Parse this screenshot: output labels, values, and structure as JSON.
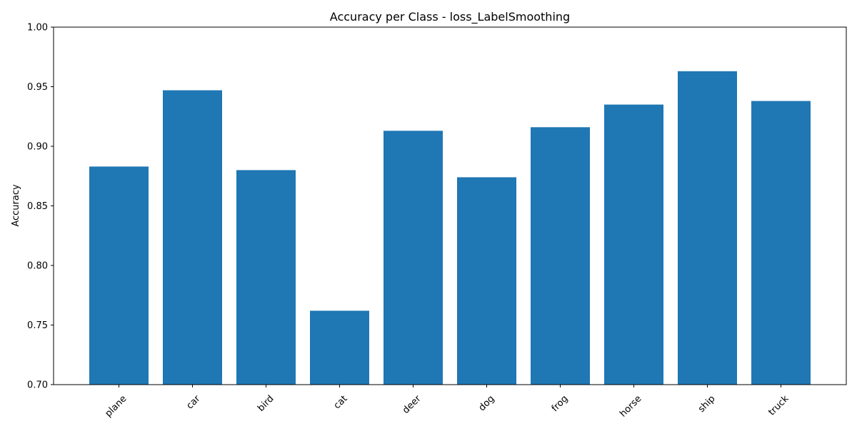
{
  "chart_data": {
    "type": "bar",
    "title": "Accuracy per Class - loss_LabelSmoothing",
    "xlabel": "",
    "ylabel": "Accuracy",
    "categories": [
      "plane",
      "car",
      "bird",
      "cat",
      "deer",
      "dog",
      "frog",
      "horse",
      "ship",
      "truck"
    ],
    "values": [
      0.883,
      0.947,
      0.88,
      0.762,
      0.913,
      0.874,
      0.916,
      0.935,
      0.963,
      0.938
    ],
    "ylim": [
      0.7,
      1.0
    ],
    "yticks": [
      0.7,
      0.75,
      0.8,
      0.85,
      0.9,
      0.95,
      1.0
    ],
    "ytick_labels": [
      "0.70",
      "0.75",
      "0.80",
      "0.85",
      "0.90",
      "0.95",
      "1.00"
    ],
    "grid": false,
    "bar_color": "#1f77b4"
  }
}
